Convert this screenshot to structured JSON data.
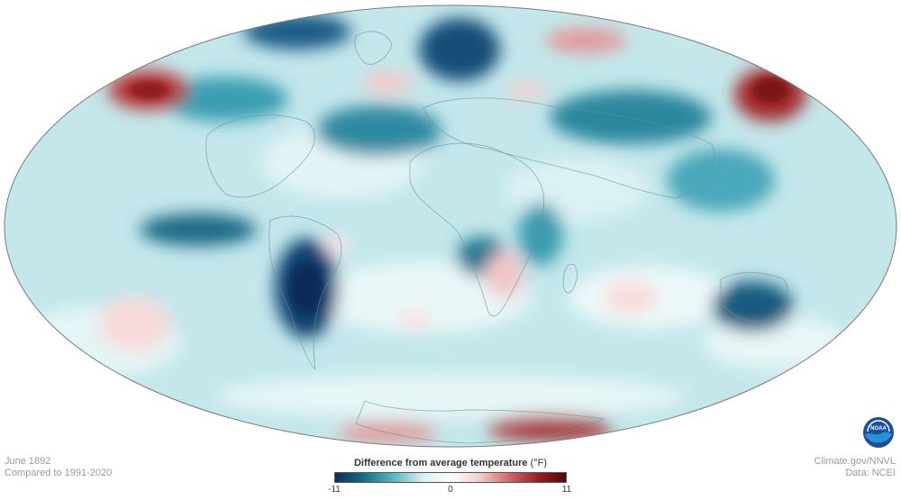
{
  "date": "June 1892",
  "baseline": "Compared to 1991-2020",
  "source_site": "Climate.gov/NNVL",
  "source_data": "Data: NCEI",
  "legend": {
    "title": "Difference from average temperature",
    "unit": "(°F)",
    "min_label": "-11",
    "mid_label": "0",
    "max_label": "11",
    "colors": [
      "#0d2d5e",
      "#136f85",
      "#55b5c2",
      "#d4eef1",
      "#ffffff",
      "#f2cfcf",
      "#d46a6a",
      "#9e1e1e",
      "#520808"
    ]
  },
  "logo": {
    "icon": "noaa-logo-icon",
    "text": "NOAA"
  },
  "map": {
    "projection": "Hammer (equal-area ellipse)",
    "ocean_base_color": "#bfe6ea",
    "coastline_color": "#6f8f94"
  }
}
